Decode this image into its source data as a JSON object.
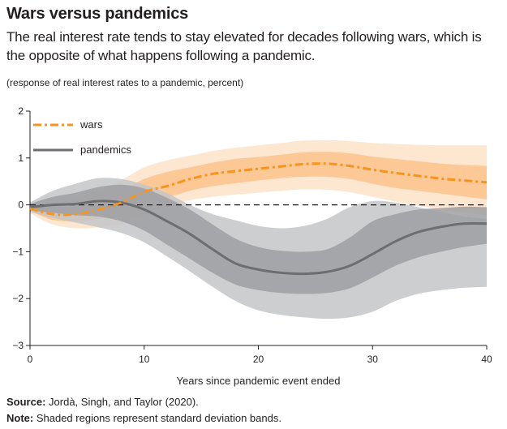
{
  "chart_data": {
    "type": "line",
    "title": "Wars versus pandemics",
    "subtitle": "The real interest rate tends to stay elevated for decades following wars, which is the opposite of what happens following a pandemic.",
    "units_note": "(response of real interest rates to a pandemic, percent)",
    "xlabel": "Years since pandemic event ended",
    "ylabel": "",
    "xlim": [
      0,
      40
    ],
    "ylim": [
      -3,
      2
    ],
    "x_ticks": [
      0,
      10,
      20,
      30,
      40
    ],
    "y_ticks": [
      2,
      1,
      0,
      -1,
      -2,
      -3
    ],
    "y_tick_labels": [
      "2",
      "1",
      "0",
      "−1",
      "−2",
      "−3"
    ],
    "zero_line": true,
    "legend_position": "top-left",
    "x": [
      0,
      2,
      4,
      6,
      8,
      10,
      12,
      14,
      16,
      18,
      20,
      22,
      24,
      26,
      28,
      30,
      32,
      34,
      36,
      38,
      40
    ],
    "series": [
      {
        "name": "wars",
        "style": "dash-dot",
        "color": "#f7941d",
        "values": [
          -0.08,
          -0.2,
          -0.2,
          -0.1,
          0.05,
          0.28,
          0.4,
          0.55,
          0.66,
          0.72,
          0.77,
          0.82,
          0.87,
          0.88,
          0.83,
          0.75,
          0.68,
          0.62,
          0.56,
          0.52,
          0.48
        ],
        "band1_lower": [
          -0.13,
          -0.32,
          -0.35,
          -0.3,
          -0.2,
          0.0,
          0.15,
          0.3,
          0.4,
          0.46,
          0.52,
          0.57,
          0.6,
          0.6,
          0.55,
          0.45,
          0.36,
          0.3,
          0.24,
          0.18,
          0.12
        ],
        "band1_upper": [
          -0.03,
          -0.08,
          -0.05,
          0.1,
          0.3,
          0.55,
          0.7,
          0.8,
          0.9,
          0.98,
          1.02,
          1.07,
          1.12,
          1.13,
          1.1,
          1.03,
          0.98,
          0.93,
          0.88,
          0.85,
          0.83
        ],
        "band2_lower": [
          -0.18,
          -0.42,
          -0.5,
          -0.48,
          -0.4,
          -0.2,
          -0.03,
          0.1,
          0.17,
          0.22,
          0.26,
          0.3,
          0.33,
          0.32,
          0.27,
          0.17,
          0.07,
          -0.02,
          -0.1,
          -0.17,
          -0.22
        ],
        "band2_upper": [
          0.0,
          0.05,
          0.12,
          0.3,
          0.53,
          0.8,
          0.95,
          1.05,
          1.15,
          1.22,
          1.27,
          1.32,
          1.37,
          1.38,
          1.36,
          1.32,
          1.3,
          1.28,
          1.27,
          1.27,
          1.27
        ]
      },
      {
        "name": "pandemics",
        "style": "solid",
        "color": "#727272",
        "values": [
          -0.05,
          0.0,
          0.02,
          0.08,
          0.05,
          -0.1,
          -0.35,
          -0.62,
          -0.95,
          -1.25,
          -1.38,
          -1.45,
          -1.47,
          -1.43,
          -1.3,
          -1.05,
          -0.78,
          -0.58,
          -0.47,
          -0.4,
          -0.4
        ],
        "band1_lower": [
          -0.12,
          -0.17,
          -0.22,
          -0.25,
          -0.35,
          -0.55,
          -0.85,
          -1.15,
          -1.45,
          -1.7,
          -1.82,
          -1.88,
          -1.9,
          -1.88,
          -1.78,
          -1.55,
          -1.3,
          -1.12,
          -1.0,
          -0.9,
          -0.83
        ],
        "band1_upper": [
          0.02,
          0.17,
          0.26,
          0.38,
          0.43,
          0.35,
          0.15,
          -0.1,
          -0.42,
          -0.72,
          -0.9,
          -0.98,
          -1.0,
          -0.95,
          -0.7,
          -0.35,
          -0.2,
          -0.1,
          -0.07,
          -0.04,
          -0.05
        ],
        "band2_lower": [
          -0.15,
          -0.28,
          -0.38,
          -0.48,
          -0.6,
          -0.8,
          -1.1,
          -1.42,
          -1.75,
          -2.05,
          -2.25,
          -2.35,
          -2.4,
          -2.43,
          -2.4,
          -2.28,
          -2.05,
          -1.9,
          -1.82,
          -1.77,
          -1.75
        ],
        "band2_upper": [
          0.05,
          0.3,
          0.45,
          0.57,
          0.55,
          0.43,
          0.25,
          0.0,
          -0.2,
          -0.33,
          -0.45,
          -0.5,
          -0.45,
          -0.3,
          -0.05,
          0.08,
          0.05,
          -0.05,
          -0.15,
          -0.25,
          -0.3
        ]
      }
    ]
  },
  "footer": {
    "source_label": "Source:",
    "source_text": "Jordà, Singh, and Taylor (2020).",
    "note_label": "Note:",
    "note_text": "Shaded regions represent standard deviation bands."
  },
  "colors": {
    "wars_line": "#f7941d",
    "wars_band_inner": "#fbc48f",
    "wars_band_outer": "#fde4cb",
    "pandemic_line": "#6d6e71",
    "pandemic_band_inner": "#9d9fa2",
    "pandemic_band_outer": "#c4c6c8"
  }
}
